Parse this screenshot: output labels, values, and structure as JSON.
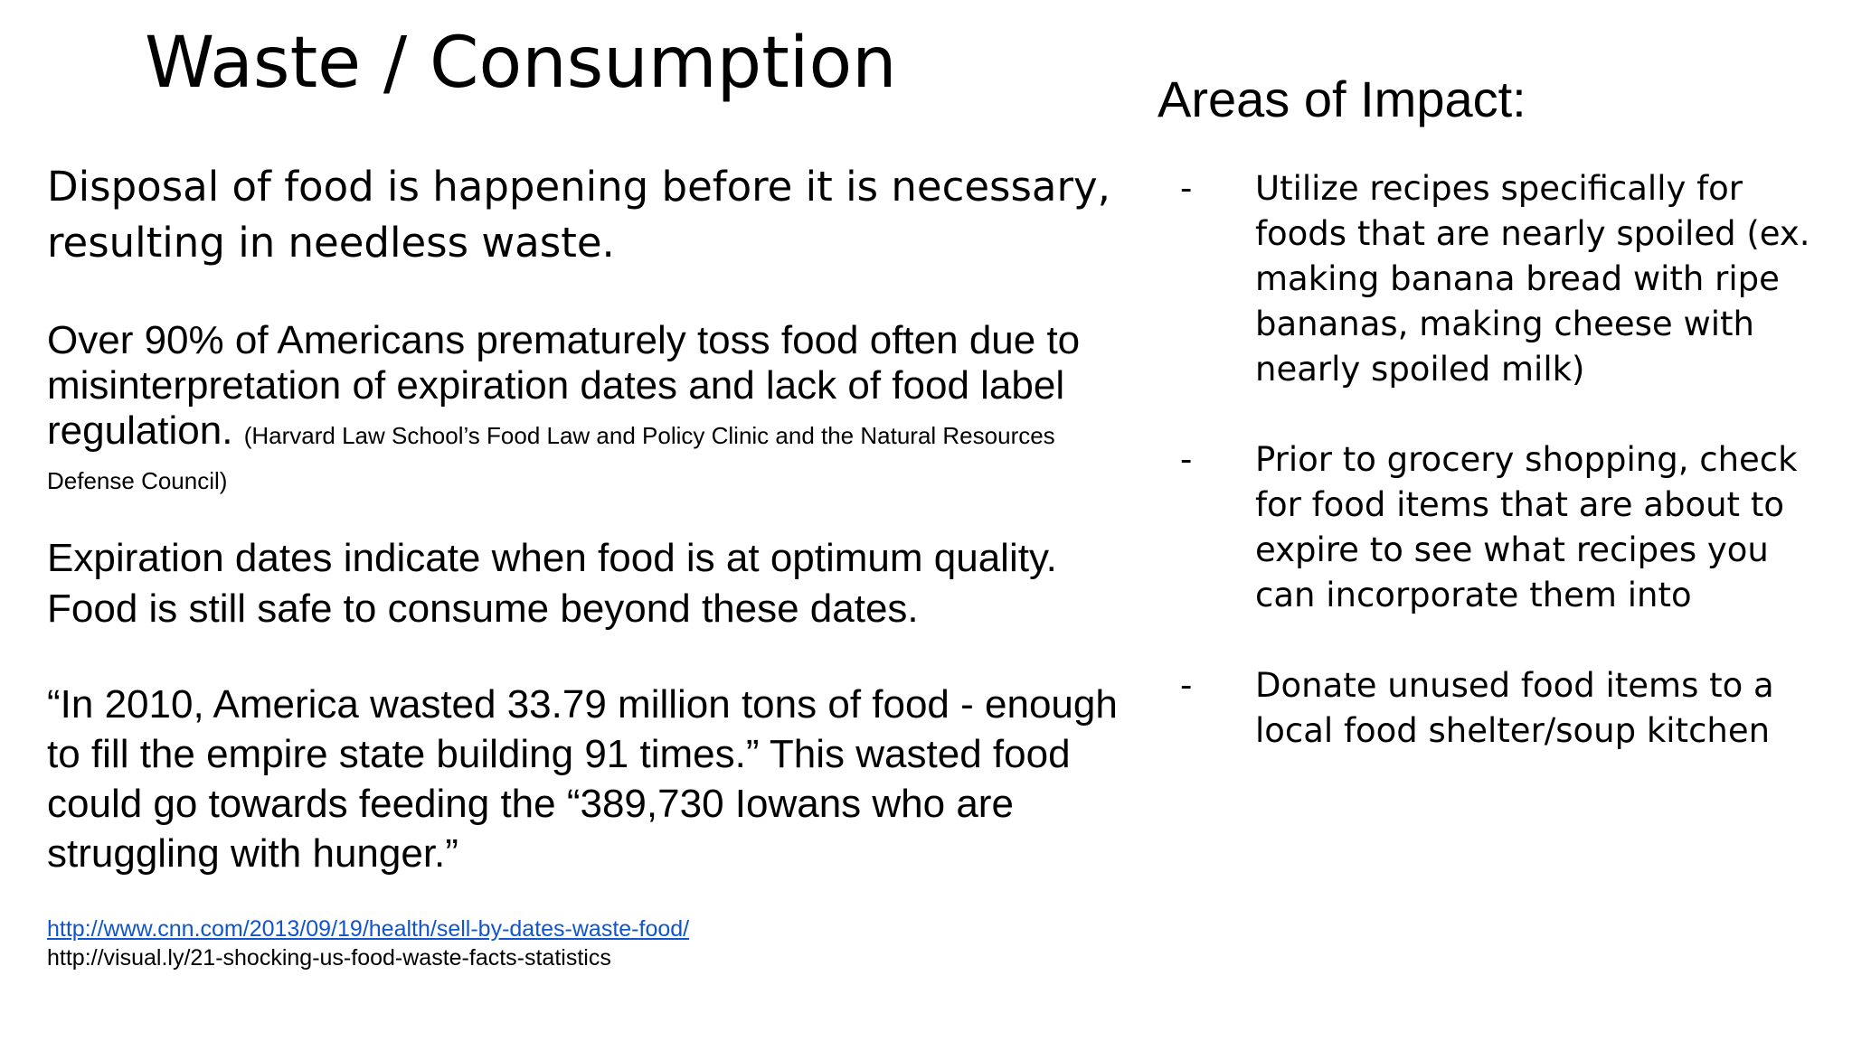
{
  "title": "Waste / Consumption",
  "lead": "Disposal of food is happening before it is necessary, resulting in needless waste.",
  "paragraphs": {
    "p1_text": "Over 90% of Americans prematurely toss food often due to misinterpretation of expiration dates and lack of food label regulation.",
    "p1_citation": "(Harvard Law School’s Food Law and Policy Clinic and the Natural Resources Defense Council)",
    "p2": "Expiration dates indicate when food is at optimum quality. Food is still safe to consume beyond these dates.",
    "p3": "“In 2010, America wasted 33.79 million tons of food - enough to fill the empire state building 91 times.”  This wasted food could go towards feeding the “389,730 Iowans who are struggling with hunger.”"
  },
  "sources": {
    "link": "http://www.cnn.com/2013/09/19/health/sell-by-dates-waste-food/",
    "plain": "http://visual.ly/21-shocking-us-food-waste-facts-statistics"
  },
  "impact": {
    "heading": "Areas of Impact:",
    "bullet": "-",
    "items": [
      "Utilize recipes specifically for foods that are nearly spoiled (ex. making banana bread with ripe bananas, making cheese with nearly spoiled milk)",
      "Prior to grocery shopping, check for food items that are about to expire to see what recipes you can incorporate them into",
      "Donate unused food items to a local food shelter/soup kitchen"
    ]
  },
  "colors": {
    "text": "#000000",
    "link": "#1155cc",
    "background": "#ffffff"
  }
}
